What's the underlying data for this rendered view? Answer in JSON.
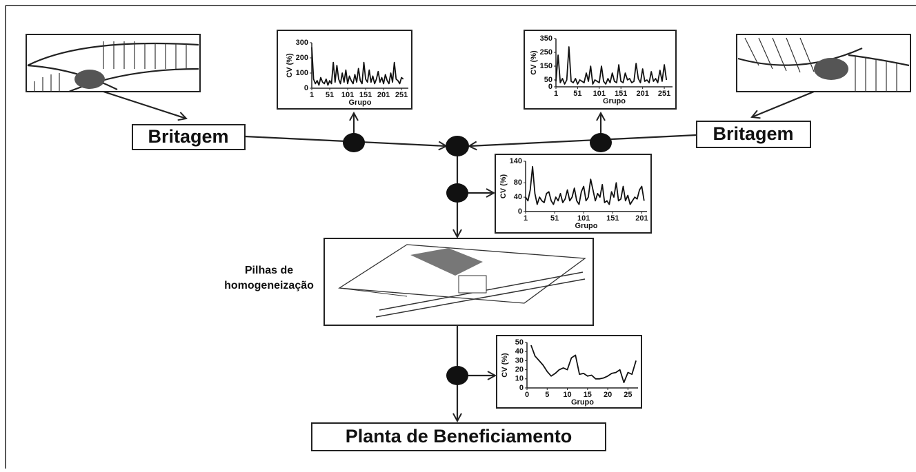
{
  "diagram": {
    "britagem_left": "Britagem",
    "britagem_right": "Britagem",
    "pilhas_line1": "Pilhas de",
    "pilhas_line2": "homogeneização",
    "planta": "Planta de Beneficiamento"
  },
  "chart_data": [
    {
      "type": "line",
      "ylabel": "CV (%)",
      "xlabel": "Grupo",
      "xlim": [
        1,
        270
      ],
      "ylim": [
        0,
        300
      ],
      "xticks": [
        1,
        51,
        101,
        151,
        201,
        251
      ],
      "yticks": [
        0,
        100,
        200,
        300
      ],
      "color": "#111111",
      "x": [
        1,
        6,
        11,
        16,
        21,
        26,
        31,
        36,
        41,
        46,
        51,
        56,
        61,
        66,
        71,
        76,
        81,
        86,
        91,
        96,
        101,
        106,
        111,
        116,
        121,
        126,
        131,
        136,
        141,
        146,
        151,
        156,
        161,
        166,
        171,
        176,
        181,
        186,
        191,
        196,
        201,
        206,
        211,
        216,
        221,
        226,
        231,
        236,
        241,
        246,
        251,
        256
      ],
      "values": [
        270,
        60,
        30,
        50,
        20,
        70,
        40,
        30,
        60,
        20,
        50,
        30,
        170,
        40,
        150,
        60,
        30,
        100,
        40,
        120,
        30,
        80,
        50,
        30,
        90,
        40,
        130,
        50,
        30,
        170,
        60,
        40,
        120,
        40,
        80,
        30,
        60,
        110,
        40,
        70,
        30,
        90,
        50,
        30,
        100,
        40,
        170,
        60,
        50,
        30,
        70,
        60
      ]
    },
    {
      "type": "line",
      "ylabel": "CV (%)",
      "xlabel": "Grupo",
      "xlim": [
        1,
        270
      ],
      "ylim": [
        0,
        350
      ],
      "xticks": [
        1,
        51,
        101,
        151,
        201,
        251
      ],
      "yticks": [
        0,
        50,
        150,
        250,
        350
      ],
      "color": "#111111",
      "x": [
        1,
        6,
        11,
        16,
        21,
        26,
        31,
        36,
        41,
        46,
        51,
        56,
        61,
        66,
        71,
        76,
        81,
        86,
        91,
        96,
        101,
        106,
        111,
        116,
        121,
        126,
        131,
        136,
        141,
        146,
        151,
        156,
        161,
        166,
        171,
        176,
        181,
        186,
        191,
        196,
        201,
        206,
        211,
        216,
        221,
        226,
        231,
        236,
        241,
        246,
        251,
        256
      ],
      "values": [
        40,
        230,
        30,
        60,
        20,
        50,
        290,
        40,
        30,
        60,
        20,
        50,
        40,
        30,
        100,
        40,
        150,
        20,
        50,
        40,
        30,
        150,
        40,
        20,
        60,
        30,
        100,
        40,
        30,
        160,
        40,
        30,
        100,
        50,
        60,
        30,
        40,
        170,
        60,
        30,
        130,
        40,
        50,
        30,
        110,
        40,
        60,
        30,
        120,
        40,
        160,
        50
      ]
    },
    {
      "type": "line",
      "ylabel": "CV (%)",
      "xlabel": "Grupo",
      "xlim": [
        1,
        210
      ],
      "ylim": [
        0,
        140
      ],
      "xticks": [
        1,
        51,
        101,
        151,
        201
      ],
      "yticks": [
        0,
        40,
        80,
        140
      ],
      "color": "#111111",
      "x": [
        1,
        5,
        9,
        13,
        17,
        21,
        25,
        29,
        33,
        37,
        41,
        45,
        49,
        53,
        57,
        61,
        65,
        69,
        73,
        77,
        81,
        85,
        89,
        93,
        97,
        101,
        105,
        109,
        113,
        117,
        121,
        125,
        129,
        133,
        137,
        141,
        145,
        149,
        153,
        157,
        161,
        165,
        169,
        173,
        177,
        181,
        185,
        189,
        193,
        197,
        201,
        205
      ],
      "values": [
        40,
        30,
        60,
        125,
        50,
        20,
        40,
        30,
        25,
        50,
        55,
        30,
        20,
        40,
        30,
        50,
        25,
        35,
        60,
        30,
        40,
        65,
        30,
        20,
        55,
        70,
        30,
        40,
        90,
        60,
        30,
        50,
        40,
        75,
        25,
        30,
        20,
        55,
        40,
        80,
        30,
        35,
        70,
        30,
        45,
        20,
        30,
        40,
        35,
        60,
        70,
        30
      ]
    },
    {
      "type": "line",
      "ylabel": "CV (%)",
      "xlabel": "Grupo",
      "xlim": [
        0,
        27.5
      ],
      "ylim": [
        0,
        50
      ],
      "xticks": [
        0,
        5,
        10,
        15,
        20,
        25
      ],
      "yticks": [
        0,
        10,
        20,
        30,
        40,
        50
      ],
      "color": "#111111",
      "x": [
        1,
        2,
        3,
        4,
        5,
        6,
        7,
        8,
        9,
        10,
        11,
        12,
        13,
        14,
        15,
        16,
        17,
        18,
        19,
        20,
        21,
        22,
        23,
        24,
        25,
        26,
        27
      ],
      "values": [
        47,
        35,
        30,
        25,
        18,
        13,
        16,
        20,
        22,
        20,
        33,
        36,
        15,
        16,
        13,
        14,
        10,
        10,
        11,
        13,
        16,
        17,
        20,
        6,
        17,
        15,
        30
      ]
    }
  ]
}
